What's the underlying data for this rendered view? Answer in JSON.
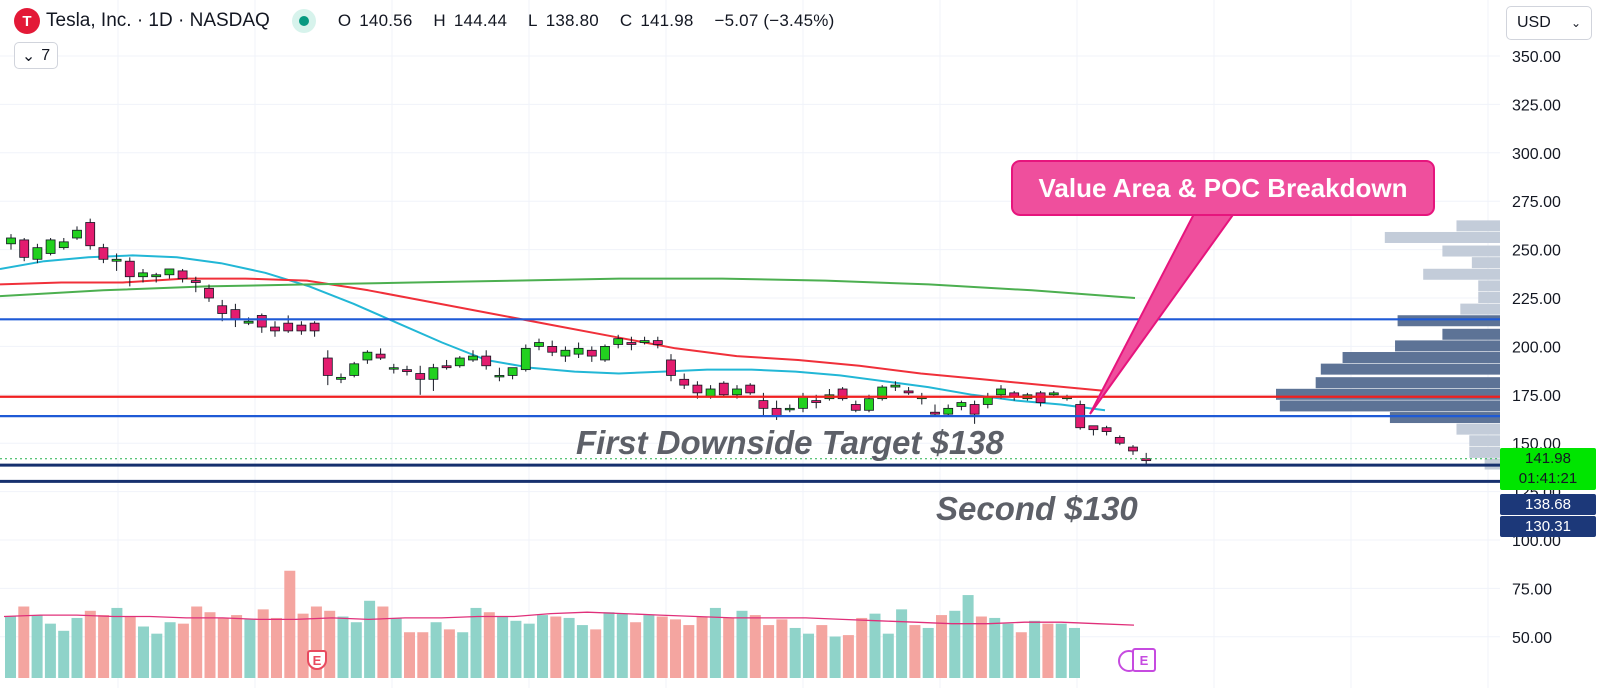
{
  "header": {
    "title": "Tesla, Inc. · 1D · NASDAQ",
    "logo_letter": "T",
    "open_label": "O",
    "open": "140.56",
    "high_label": "H",
    "high": "144.44",
    "low_label": "L",
    "low": "138.80",
    "close_label": "C",
    "close": "141.98",
    "change": "−5.07 (−3.45%)",
    "indicators_count": "7"
  },
  "currency": {
    "value": "USD",
    "icon": "chevron-down-icon"
  },
  "price_labels": {
    "last_price": "141.98",
    "countdown": "01:41:21",
    "level_1": "138.68",
    "level_2": "130.31"
  },
  "annotations": {
    "callout": "Value Area & POC Breakdown",
    "target_1": "First Downside Target $138",
    "target_2": "Second $130",
    "earnings_marker": "E"
  },
  "colors": {
    "up": "#22d11f",
    "down": "#e31c6f",
    "vol_up": "#8fd3c9",
    "vol_down": "#f4a5a0",
    "ma_fast": "#22b7d6",
    "ma_mid": "#f0303a",
    "ma_slow": "#4caf50",
    "level_blue": "#1e5ad6",
    "level_red": "#f01f1f",
    "level_navy": "#16306e",
    "vp_value_area": "#5d7396",
    "vp_outside": "#c3ccd9",
    "volume_ma": "#e0307a",
    "callout": "#ef4f9d"
  },
  "chart_data": {
    "type": "candlestick",
    "y_axis": {
      "range": [
        40,
        365
      ],
      "ticks": [
        "350.00",
        "325.00",
        "300.00",
        "275.00",
        "250.00",
        "225.00",
        "200.00",
        "175.00",
        "150.00",
        "125.00",
        "100.00",
        "75.00",
        "50.00"
      ]
    },
    "candles_ohlc": [
      [
        253,
        258,
        250,
        256
      ],
      [
        255,
        256,
        244,
        246
      ],
      [
        245,
        253,
        243,
        251
      ],
      [
        248,
        256,
        247,
        255
      ],
      [
        251,
        256,
        250,
        254
      ],
      [
        256,
        262,
        255,
        260
      ],
      [
        264,
        266,
        250,
        252
      ],
      [
        251,
        253,
        243,
        245
      ],
      [
        244,
        248,
        239,
        245
      ],
      [
        244,
        246,
        231,
        236
      ],
      [
        236,
        240,
        233,
        238
      ],
      [
        236,
        238,
        233,
        237
      ],
      [
        237,
        240,
        235,
        240
      ],
      [
        239,
        240,
        233,
        235
      ],
      [
        234,
        236,
        228,
        233
      ],
      [
        230,
        232,
        223,
        225
      ],
      [
        221,
        224,
        213,
        217
      ],
      [
        219,
        222,
        210,
        214
      ],
      [
        212,
        215,
        211,
        213
      ],
      [
        216,
        217,
        207,
        210
      ],
      [
        210,
        213,
        205,
        208
      ],
      [
        212,
        216,
        207,
        208
      ],
      [
        211,
        213,
        206,
        208
      ],
      [
        212,
        213,
        205,
        208
      ],
      [
        194,
        198,
        180,
        185
      ],
      [
        183,
        186,
        181,
        184
      ],
      [
        185,
        192,
        184,
        191
      ],
      [
        193,
        198,
        191,
        197
      ],
      [
        196,
        199,
        193,
        194
      ],
      [
        189,
        191,
        186,
        189
      ],
      [
        188,
        190,
        185,
        187
      ],
      [
        186,
        190,
        175,
        183
      ],
      [
        183,
        191,
        177,
        189
      ],
      [
        190,
        193,
        188,
        189
      ],
      [
        190,
        195,
        189,
        194
      ],
      [
        193,
        198,
        192,
        195
      ],
      [
        195,
        198,
        188,
        190
      ],
      [
        185,
        189,
        182,
        185
      ],
      [
        185,
        189,
        183,
        189
      ],
      [
        188,
        201,
        187,
        199
      ],
      [
        200,
        204,
        198,
        202
      ],
      [
        200,
        203,
        195,
        197
      ],
      [
        195,
        200,
        192,
        198
      ],
      [
        196,
        202,
        194,
        199
      ],
      [
        198,
        200,
        192,
        195
      ],
      [
        193,
        201,
        192,
        200
      ],
      [
        201,
        206,
        199,
        204
      ],
      [
        202,
        205,
        198,
        201
      ],
      [
        202,
        205,
        201,
        203
      ],
      [
        203,
        205,
        199,
        201
      ],
      [
        193,
        196,
        182,
        185
      ],
      [
        183,
        186,
        178,
        180
      ],
      [
        180,
        182,
        173,
        176
      ],
      [
        174,
        180,
        173,
        178
      ],
      [
        181,
        182,
        174,
        175
      ],
      [
        175,
        180,
        173,
        178
      ],
      [
        180,
        181,
        175,
        176
      ],
      [
        172,
        176,
        164,
        168
      ],
      [
        168,
        172,
        162,
        164
      ],
      [
        168,
        170,
        166,
        168
      ],
      [
        168,
        176,
        166,
        174
      ],
      [
        172,
        175,
        168,
        171
      ],
      [
        173,
        178,
        172,
        175
      ],
      [
        178,
        179,
        172,
        173
      ],
      [
        170,
        172,
        166,
        167
      ],
      [
        167,
        175,
        166,
        173
      ],
      [
        173,
        180,
        172,
        179
      ],
      [
        179,
        182,
        177,
        180
      ],
      [
        177,
        179,
        175,
        176
      ],
      [
        173,
        176,
        170,
        174
      ],
      [
        166,
        170,
        164,
        165
      ],
      [
        165,
        170,
        164,
        168
      ],
      [
        169,
        172,
        167,
        171
      ],
      [
        170,
        172,
        160,
        165
      ],
      [
        170,
        176,
        168,
        174
      ],
      [
        175,
        180,
        173,
        178
      ],
      [
        176,
        177,
        172,
        174
      ],
      [
        173,
        176,
        172,
        175
      ],
      [
        176,
        177,
        169,
        171
      ],
      [
        175,
        177,
        174,
        176
      ],
      [
        173,
        175,
        172,
        174
      ],
      [
        170,
        172,
        157,
        158
      ],
      [
        159,
        159,
        154,
        157
      ],
      [
        158,
        159,
        154,
        156
      ],
      [
        153,
        154,
        149,
        150
      ],
      [
        148,
        149,
        144,
        146
      ],
      [
        142,
        145,
        139,
        141
      ]
    ],
    "moving_averages": [
      {
        "name_color": "ma_fast",
        "values": [
          240,
          244,
          246,
          247,
          246,
          243,
          238,
          231,
          222,
          212,
          202,
          193,
          189,
          187,
          186,
          187,
          188,
          188,
          187,
          185,
          182,
          179,
          175,
          172,
          170,
          167
        ]
      },
      {
        "name_color": "ma_mid",
        "values": [
          232,
          233,
          233,
          235,
          235,
          234,
          229,
          223,
          217,
          211,
          205,
          199,
          195,
          193,
          190,
          186,
          183,
          180,
          177
        ]
      },
      {
        "name_color": "ma_slow",
        "values": [
          226,
          229,
          231,
          232,
          233,
          234,
          235,
          235,
          234,
          232,
          229,
          225
        ]
      }
    ],
    "horizontal_levels": [
      {
        "price": 214,
        "color": "level_blue"
      },
      {
        "price": 174,
        "color": "level_red"
      },
      {
        "price": 164,
        "color": "level_blue"
      },
      {
        "price": 138.68,
        "color": "level_navy"
      },
      {
        "price": 130.31,
        "color": "level_navy"
      }
    ],
    "volume_profile": [
      {
        "price": 262,
        "width": 0.34,
        "area": "outside"
      },
      {
        "price": 256,
        "width": 0.9,
        "area": "outside"
      },
      {
        "price": 249,
        "width": 0.45,
        "area": "outside"
      },
      {
        "price": 243,
        "width": 0.22,
        "area": "outside"
      },
      {
        "price": 237,
        "width": 0.6,
        "area": "outside"
      },
      {
        "price": 231,
        "width": 0.17,
        "area": "outside"
      },
      {
        "price": 225,
        "width": 0.17,
        "area": "outside"
      },
      {
        "price": 219,
        "width": 0.31,
        "area": "outside"
      },
      {
        "price": 213,
        "width": 0.8,
        "area": "value"
      },
      {
        "price": 206,
        "width": 0.45,
        "area": "value"
      },
      {
        "price": 200,
        "width": 0.82,
        "area": "value"
      },
      {
        "price": 194,
        "width": 1.23,
        "area": "value"
      },
      {
        "price": 188,
        "width": 1.4,
        "area": "value"
      },
      {
        "price": 181,
        "width": 1.44,
        "area": "value"
      },
      {
        "price": 175,
        "width": 1.75,
        "area": "value"
      },
      {
        "price": 169,
        "width": 1.72,
        "area": "value"
      },
      {
        "price": 163,
        "width": 0.86,
        "area": "value"
      },
      {
        "price": 157,
        "width": 0.34,
        "area": "outside"
      },
      {
        "price": 151,
        "width": 0.24,
        "area": "outside"
      },
      {
        "price": 145,
        "width": 0.24,
        "area": "outside"
      },
      {
        "price": 139,
        "width": 0.12,
        "area": "outside"
      }
    ],
    "volume_bars": {
      "ma": [
        78,
        79,
        79,
        78,
        78,
        77,
        77,
        76,
        76,
        77,
        76,
        77,
        77,
        78,
        78,
        80,
        81,
        80,
        79,
        78,
        77,
        77,
        77,
        76,
        75,
        74,
        73,
        73,
        74,
        74,
        73,
        72
      ],
      "heights": [
        78,
        85,
        79,
        73,
        68,
        77,
        82,
        79,
        84,
        78,
        71,
        66,
        74,
        73,
        85,
        81,
        77,
        79,
        76,
        83,
        77,
        110,
        80,
        85,
        82,
        78,
        74,
        89,
        85,
        77,
        67,
        67,
        74,
        69,
        67,
        84,
        81,
        78,
        75,
        73,
        79,
        78,
        77,
        72,
        69,
        81,
        80,
        74,
        79,
        78,
        76,
        72,
        78,
        84,
        77,
        82,
        79,
        72,
        76,
        70,
        66,
        72,
        64,
        65,
        77,
        80,
        66,
        83,
        72,
        70,
        79,
        82,
        93,
        78,
        77,
        73,
        67,
        75,
        73,
        73,
        70
      ]
    }
  }
}
